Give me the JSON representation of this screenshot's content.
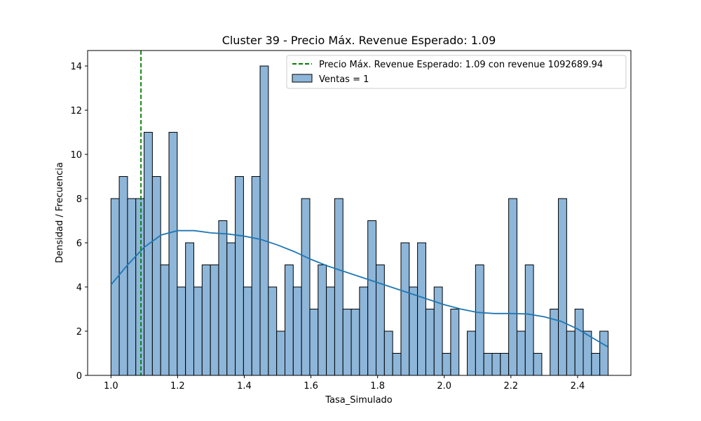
{
  "chart_data": {
    "type": "bar",
    "title": "Cluster 39 - Precio Máx. Revenue Esperado: 1.09",
    "xlabel": "Tasa_Simulado",
    "ylabel": "Densidad / Frecuencia",
    "xlim": [
      0.93,
      2.56
    ],
    "ylim": [
      0,
      14.7
    ],
    "x_ticks": [
      "1.0",
      "1.2",
      "1.4",
      "1.6",
      "1.8",
      "2.0",
      "2.2",
      "2.4"
    ],
    "y_ticks": [
      "0",
      "2",
      "4",
      "6",
      "8",
      "10",
      "12",
      "14"
    ],
    "legend_position": "top-right",
    "bin_start": 1.0,
    "bin_width": 0.02486,
    "histogram": {
      "name": "Ventas = 1",
      "color": "#8db6d9",
      "values": [
        8,
        9,
        8,
        8,
        11,
        9,
        5,
        11,
        4,
        6,
        4,
        5,
        5,
        7,
        6,
        9,
        4,
        9,
        14,
        4,
        2,
        5,
        4,
        8,
        3,
        5,
        4,
        8,
        3,
        3,
        4,
        7,
        5,
        2,
        1,
        6,
        4,
        6,
        3,
        4,
        1,
        3,
        0,
        2,
        5,
        1,
        1,
        1,
        8,
        2,
        5,
        1,
        0,
        3,
        8,
        2,
        3,
        2,
        1,
        2
      ]
    },
    "kde": {
      "color": "#1f77b4",
      "x": [
        1.0,
        1.05,
        1.1,
        1.15,
        1.2,
        1.25,
        1.3,
        1.35,
        1.4,
        1.45,
        1.5,
        1.55,
        1.6,
        1.65,
        1.7,
        1.75,
        1.8,
        1.85,
        1.9,
        1.95,
        2.0,
        2.05,
        2.1,
        2.15,
        2.2,
        2.25,
        2.3,
        2.35,
        2.4,
        2.45,
        2.49
      ],
      "y": [
        4.1,
        5.0,
        5.8,
        6.35,
        6.55,
        6.55,
        6.45,
        6.4,
        6.3,
        6.15,
        5.9,
        5.6,
        5.25,
        4.95,
        4.7,
        4.45,
        4.2,
        3.95,
        3.7,
        3.45,
        3.2,
        3.0,
        2.85,
        2.8,
        2.8,
        2.78,
        2.65,
        2.45,
        2.1,
        1.65,
        1.3
      ]
    },
    "reference_line": {
      "x": 1.09,
      "color": "#008000",
      "label": "Precio Máx. Revenue Esperado: 1.09 con revenue 1092689.94"
    }
  }
}
